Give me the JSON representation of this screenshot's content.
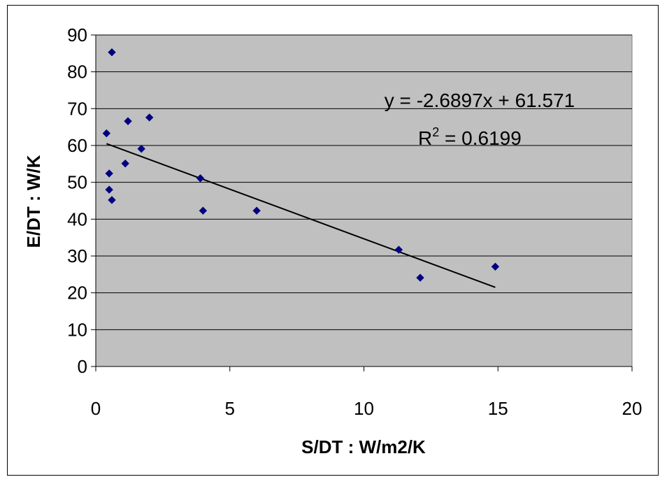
{
  "chart_data": {
    "type": "scatter",
    "title": "",
    "xlabel": "S/DT : W/m2/K",
    "ylabel": "E/DT : W/K",
    "xlim": [
      0,
      20
    ],
    "ylim": [
      0,
      90
    ],
    "x_ticks": [
      "0",
      "5",
      "10",
      "15",
      "20"
    ],
    "y_ticks": [
      "0",
      "10",
      "20",
      "30",
      "40",
      "50",
      "60",
      "70",
      "80",
      "90"
    ],
    "grid": "horizontal",
    "legend": "none",
    "plot_background": "#c0c0c0",
    "series": [
      {
        "marker": "diamond",
        "color": "#000080",
        "points": [
          [
            0.6,
            85.3
          ],
          [
            0.4,
            63.3
          ],
          [
            1.2,
            66.6
          ],
          [
            2.0,
            67.6
          ],
          [
            1.7,
            59.1
          ],
          [
            1.1,
            55.1
          ],
          [
            0.5,
            52.4
          ],
          [
            0.5,
            48.0
          ],
          [
            0.6,
            45.2
          ],
          [
            3.9,
            51.1
          ],
          [
            4.0,
            42.3
          ],
          [
            6.0,
            42.3
          ],
          [
            11.3,
            31.7
          ],
          [
            12.1,
            24.1
          ],
          [
            14.9,
            27.1
          ]
        ]
      }
    ],
    "trendline": {
      "slope": -2.6897,
      "intercept": 61.571,
      "x_range": [
        0.4,
        14.9
      ],
      "equation_label": "y = -2.6897x + 61.571",
      "r2_prefix": "R",
      "r2_sup": "2",
      "r2_value": " = 0.6199"
    }
  }
}
